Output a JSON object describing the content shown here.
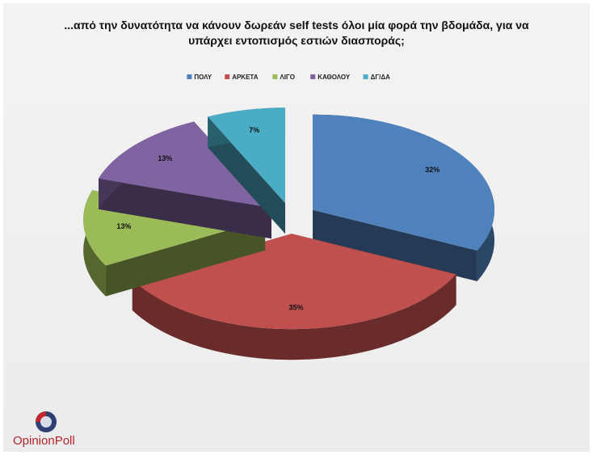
{
  "chart_data": {
    "type": "pie3d",
    "title": "...από την δυνατότητα να κάνουν δωρεάν self tests όλοι μία φορά την βδομάδα, για να υπάρχει εντοπισμός εστιών διασποράς;",
    "categories": [
      "ΠΟΛΥ",
      "ΑΡΚΕΤΑ",
      "ΛΙΓΟ",
      "ΚΑΘΟΛΟΥ",
      "ΔΓ/ΔΑ"
    ],
    "values": [
      32,
      35,
      13,
      13,
      7
    ],
    "value_labels": [
      "32%",
      "35%",
      "13%",
      "13%",
      "7%"
    ],
    "colors": [
      "#4f81bd",
      "#c0504d",
      "#9bbb59",
      "#8064a2",
      "#4bacc6"
    ],
    "legend": "top"
  },
  "brand": "OpinionPoll"
}
